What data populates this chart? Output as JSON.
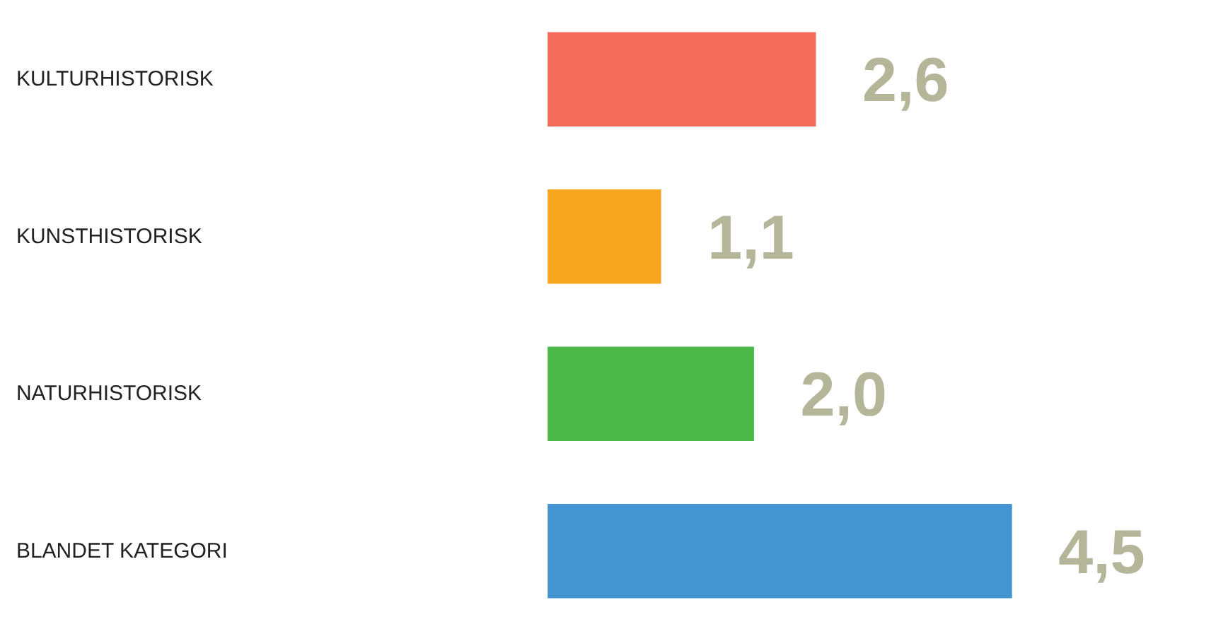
{
  "chart_data": {
    "type": "bar",
    "orientation": "horizontal",
    "categories": [
      "KULTURHISTORISK",
      "KUNSTHISTORISK",
      "NATURHISTORISK",
      "BLANDET KATEGORI"
    ],
    "values": [
      2.6,
      1.1,
      2.0,
      4.5
    ],
    "colors": [
      "#f26b5b",
      "#f7a51c",
      "#4cb848",
      "#4295d1"
    ],
    "value_labels": [
      "2,6",
      "1,1",
      "2,0",
      "4,5"
    ]
  }
}
